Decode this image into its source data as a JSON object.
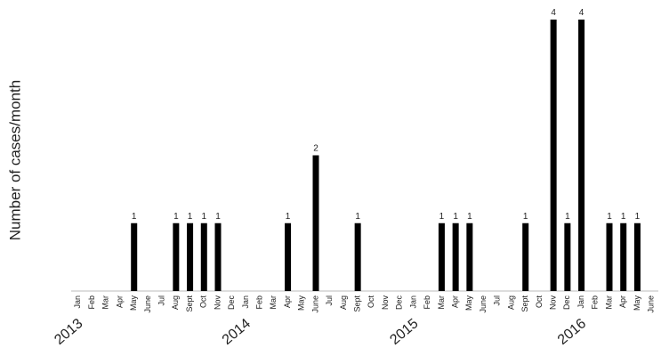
{
  "chart_data": {
    "type": "bar",
    "y_label": "Number of cases/month",
    "categories": [
      "Jan",
      "Feb",
      "Mar",
      "Apr",
      "May",
      "June",
      "Jul",
      "Aug",
      "Sept",
      "Oct",
      "Nov",
      "Dec",
      "Jan",
      "Feb",
      "Mar",
      "Apr",
      "May",
      "June",
      "Jul",
      "Aug",
      "Sept",
      "Oct",
      "Nov",
      "Dec",
      "Jan",
      "Feb",
      "Mar",
      "Apr",
      "May",
      "June",
      "Jul",
      "Aug",
      "Sept",
      "Oct",
      "Nov",
      "Dec",
      "Jan",
      "Feb",
      "Mar",
      "Apr",
      "May",
      "June"
    ],
    "values": [
      0,
      0,
      0,
      0,
      1,
      0,
      0,
      1,
      1,
      1,
      1,
      0,
      0,
      0,
      0,
      1,
      0,
      2,
      0,
      0,
      1,
      0,
      0,
      0,
      0,
      0,
      1,
      1,
      1,
      0,
      0,
      0,
      1,
      0,
      4,
      1,
      4,
      0,
      1,
      1,
      1,
      0
    ],
    "groups": [
      {
        "name": "2013",
        "size": 12
      },
      {
        "name": "2014",
        "size": 12
      },
      {
        "name": "2015",
        "size": 12
      },
      {
        "name": "2016",
        "size": 6
      }
    ],
    "color": "#000000",
    "ylim": [
      0,
      4
    ],
    "show_value_labels": true
  }
}
